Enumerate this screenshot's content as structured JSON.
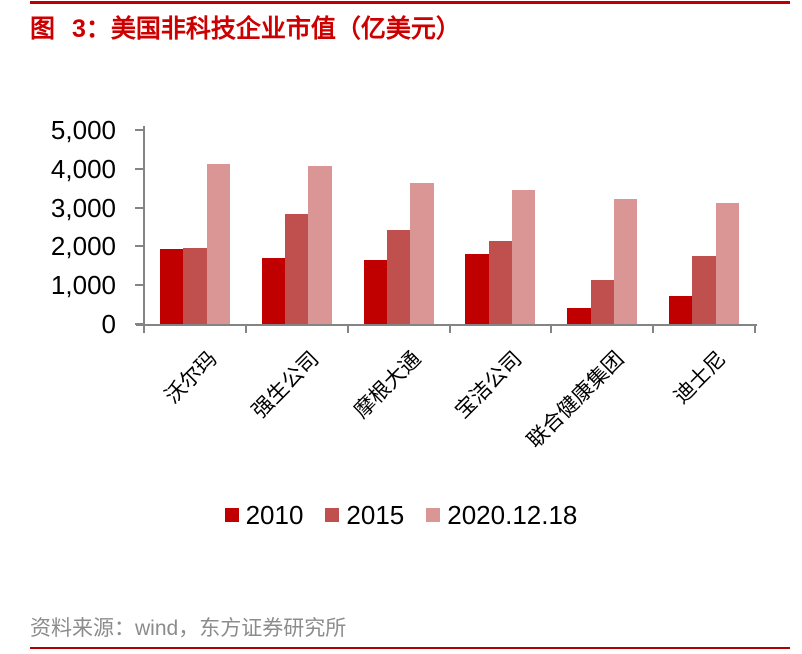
{
  "page": {
    "title": "图 3：美国非科技企业市值（亿美元）",
    "title_color": "#CC0000",
    "top_rule_color": "#C00000",
    "bottom_rule_color": "#B00000",
    "source_note": "资料来源：wind，东方证券研究所",
    "source_note_color": "#8C8C8C"
  },
  "chart_data": {
    "type": "bar",
    "title": "美国非科技企业市值（亿美元）",
    "categories": [
      "沃尔玛",
      "强生公司",
      "摩根大通",
      "宝洁公司",
      "联合健康集团",
      "迪士尼"
    ],
    "series": [
      {
        "name": "2010",
        "color": "#C00000",
        "values": [
          1930,
          1700,
          1650,
          1800,
          420,
          720
        ]
      },
      {
        "name": "2015",
        "color": "#C0504D",
        "values": [
          1970,
          2830,
          2410,
          2150,
          1130,
          1740
        ]
      },
      {
        "name": "2020.12.18",
        "color": "#D99694",
        "values": [
          4120,
          4060,
          3630,
          3450,
          3220,
          3130
        ]
      }
    ],
    "ylabel": "",
    "xlabel": "",
    "ylim": [
      0,
      5000
    ],
    "ytick_step": 1000,
    "ytick_labels": [
      "0",
      "1,000",
      "2,000",
      "3,000",
      "4,000",
      "5,000"
    ],
    "grid": false,
    "legend_position": "bottom",
    "xlabel_rotation_deg": -45,
    "axis_color": "#848484",
    "text_color": "#000000"
  }
}
